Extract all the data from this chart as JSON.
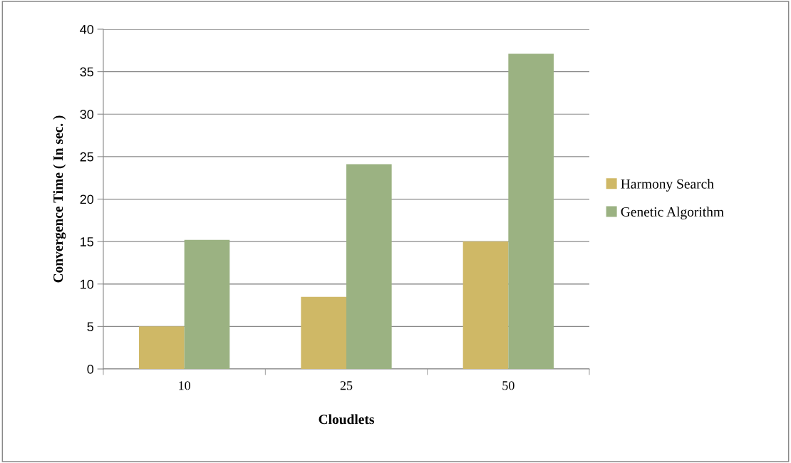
{
  "chart_data": {
    "type": "bar",
    "xlabel": "Cloudlets",
    "ylabel": "Convergence Time ( In sec. )",
    "categories": [
      "10",
      "25",
      "50"
    ],
    "series": [
      {
        "name": "Harmony Search",
        "color": "#cfb866",
        "values": [
          5,
          8.5,
          15
        ]
      },
      {
        "name": "Genetic Algorithm",
        "color": "#9bb282",
        "values": [
          15.2,
          24.1,
          37.1
        ]
      }
    ],
    "ylim": [
      0,
      40
    ],
    "yticks": [
      0,
      5,
      10,
      15,
      20,
      25,
      30,
      35,
      40
    ],
    "grid": "y",
    "legend": "right"
  }
}
